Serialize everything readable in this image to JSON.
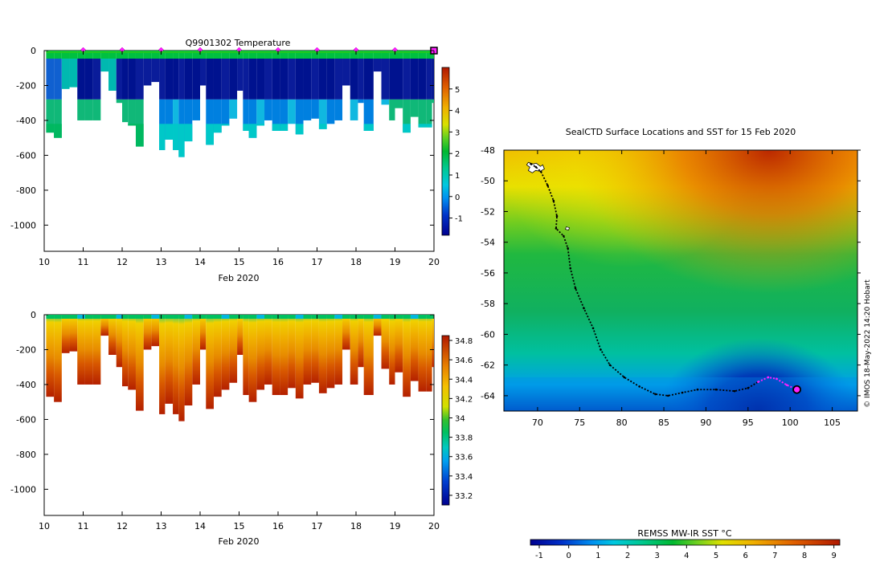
{
  "chart_data": [
    {
      "type": "heatmap",
      "title": "Q9901302  Temperature",
      "xlabel": "Feb 2020",
      "ylabel": "",
      "xlim": [
        10,
        20
      ],
      "ylim": [
        -1150,
        0
      ],
      "xticks": [
        "10",
        "11",
        "12",
        "13",
        "14",
        "15",
        "16",
        "17",
        "18",
        "19",
        "20"
      ],
      "yticks": [
        "0",
        "-200",
        "-400",
        "-600",
        "-800",
        "-1000"
      ],
      "yticks_values": [
        0,
        -200,
        -400,
        -600,
        -800,
        -1000
      ],
      "colorbar": {
        "range": [
          -1.8,
          6
        ],
        "ticks": [
          "-1",
          "0",
          "1",
          "2",
          "3",
          "4",
          "5"
        ],
        "tick_values": [
          -1,
          0,
          1,
          2,
          3,
          4,
          5
        ]
      },
      "surface_markers_days": [
        11,
        12,
        13,
        14,
        15,
        16,
        17,
        18,
        19
      ],
      "final_marker_day": 20,
      "profiles": [
        {
          "x": 10.05,
          "depth": 470
        },
        {
          "x": 10.25,
          "depth": 500
        },
        {
          "x": 10.45,
          "depth": 220
        },
        {
          "x": 10.65,
          "depth": 210
        },
        {
          "x": 10.85,
          "depth": 400
        },
        {
          "x": 11.05,
          "depth": 400
        },
        {
          "x": 11.25,
          "depth": 400
        },
        {
          "x": 11.45,
          "depth": 120
        },
        {
          "x": 11.65,
          "depth": 230
        },
        {
          "x": 11.85,
          "depth": 300
        },
        {
          "x": 12.0,
          "depth": 410
        },
        {
          "x": 12.15,
          "depth": 430
        },
        {
          "x": 12.35,
          "depth": 550
        },
        {
          "x": 12.55,
          "depth": 200
        },
        {
          "x": 12.75,
          "depth": 180
        },
        {
          "x": 12.95,
          "depth": 570
        },
        {
          "x": 13.1,
          "depth": 510
        },
        {
          "x": 13.3,
          "depth": 570
        },
        {
          "x": 13.45,
          "depth": 610
        },
        {
          "x": 13.6,
          "depth": 520
        },
        {
          "x": 13.8,
          "depth": 400
        },
        {
          "x": 14.0,
          "depth": 200
        },
        {
          "x": 14.15,
          "depth": 540
        },
        {
          "x": 14.35,
          "depth": 470
        },
        {
          "x": 14.55,
          "depth": 430
        },
        {
          "x": 14.75,
          "depth": 390
        },
        {
          "x": 14.95,
          "depth": 230
        },
        {
          "x": 15.1,
          "depth": 460
        },
        {
          "x": 15.25,
          "depth": 500
        },
        {
          "x": 15.45,
          "depth": 430
        },
        {
          "x": 15.65,
          "depth": 400
        },
        {
          "x": 15.85,
          "depth": 460
        },
        {
          "x": 16.05,
          "depth": 460
        },
        {
          "x": 16.25,
          "depth": 420
        },
        {
          "x": 16.45,
          "depth": 480
        },
        {
          "x": 16.65,
          "depth": 400
        },
        {
          "x": 16.85,
          "depth": 390
        },
        {
          "x": 17.05,
          "depth": 450
        },
        {
          "x": 17.25,
          "depth": 420
        },
        {
          "x": 17.45,
          "depth": 400
        },
        {
          "x": 17.65,
          "depth": 200
        },
        {
          "x": 17.85,
          "depth": 400
        },
        {
          "x": 18.05,
          "depth": 300
        },
        {
          "x": 18.2,
          "depth": 460
        },
        {
          "x": 18.45,
          "depth": 120
        },
        {
          "x": 18.65,
          "depth": 310
        },
        {
          "x": 18.85,
          "depth": 400
        },
        {
          "x": 19.0,
          "depth": 330
        },
        {
          "x": 19.2,
          "depth": 470
        },
        {
          "x": 19.4,
          "depth": 380
        },
        {
          "x": 19.6,
          "depth": 440
        },
        {
          "x": 19.8,
          "depth": 440
        },
        {
          "x": 19.95,
          "depth": 300
        }
      ]
    },
    {
      "type": "heatmap",
      "title": "",
      "xlabel": "Feb 2020",
      "ylabel": "",
      "xlim": [
        10,
        20
      ],
      "ylim": [
        -1150,
        0
      ],
      "xticks": [
        "10",
        "11",
        "12",
        "13",
        "14",
        "15",
        "16",
        "17",
        "18",
        "19",
        "20"
      ],
      "yticks": [
        "0",
        "-200",
        "-400",
        "-600",
        "-800",
        "-1000"
      ],
      "yticks_values": [
        0,
        -200,
        -400,
        -600,
        -800,
        -1000
      ],
      "colorbar": {
        "range": [
          33.1,
          34.85
        ],
        "ticks": [
          "33.2",
          "33.4",
          "33.6",
          "33.8",
          "34",
          "34.2",
          "34.4",
          "34.6",
          "34.8"
        ],
        "tick_values": [
          33.2,
          33.4,
          33.6,
          33.8,
          34.0,
          34.2,
          34.4,
          34.6,
          34.8
        ]
      }
    },
    {
      "type": "heatmap",
      "title": "SealCTD Surface Locations and SST for 15 Feb 2020",
      "xlabel": "",
      "ylabel": "",
      "xlim": [
        66,
        108
      ],
      "ylim": [
        -65,
        -48
      ],
      "xticks": [
        "70",
        "75",
        "80",
        "85",
        "90",
        "95",
        "100",
        "105"
      ],
      "xticks_values": [
        70,
        75,
        80,
        85,
        90,
        95,
        100,
        105
      ],
      "yticks": [
        "-48",
        "-50",
        "-52",
        "-54",
        "-56",
        "-58",
        "-60",
        "-62",
        "-64"
      ],
      "yticks_values": [
        -48,
        -50,
        -52,
        -54,
        -56,
        -58,
        -60,
        -62,
        -64
      ],
      "colorbar": {
        "label": "REMSS MW-IR SST °C",
        "range": [
          -1.3,
          9.2
        ],
        "ticks": [
          "-1",
          "0",
          "1",
          "2",
          "3",
          "4",
          "5",
          "6",
          "7",
          "8",
          "9"
        ],
        "tick_values": [
          -1,
          0,
          1,
          2,
          3,
          4,
          5,
          6,
          7,
          8,
          9
        ]
      },
      "track": [
        [
          69.2,
          -48.9
        ],
        [
          69.8,
          -49.1
        ],
        [
          70.4,
          -49.4
        ],
        [
          71.2,
          -50.3
        ],
        [
          71.9,
          -51.3
        ],
        [
          72.3,
          -52.3
        ],
        [
          72.2,
          -53.1
        ],
        [
          73.1,
          -53.6
        ],
        [
          73.6,
          -54.4
        ],
        [
          73.9,
          -55.7
        ],
        [
          74.5,
          -57.0
        ],
        [
          75.5,
          -58.3
        ],
        [
          76.6,
          -59.6
        ],
        [
          77.5,
          -61.0
        ],
        [
          78.6,
          -62.0
        ],
        [
          80.3,
          -62.8
        ],
        [
          82.1,
          -63.4
        ],
        [
          84.0,
          -63.9
        ],
        [
          85.5,
          -64.0
        ],
        [
          87.2,
          -63.8
        ],
        [
          89.0,
          -63.6
        ],
        [
          91.2,
          -63.6
        ],
        [
          93.4,
          -63.7
        ],
        [
          95.0,
          -63.5
        ],
        [
          96.2,
          -63.1
        ],
        [
          97.4,
          -62.8
        ],
        [
          98.4,
          -62.9
        ],
        [
          99.6,
          -63.3
        ],
        [
          100.8,
          -63.6
        ]
      ],
      "recent_track_start_index": 24,
      "final_position": [
        100.8,
        -63.6
      ],
      "credit": "© IMOS 18-May-2022 14:20 Hobart"
    }
  ]
}
